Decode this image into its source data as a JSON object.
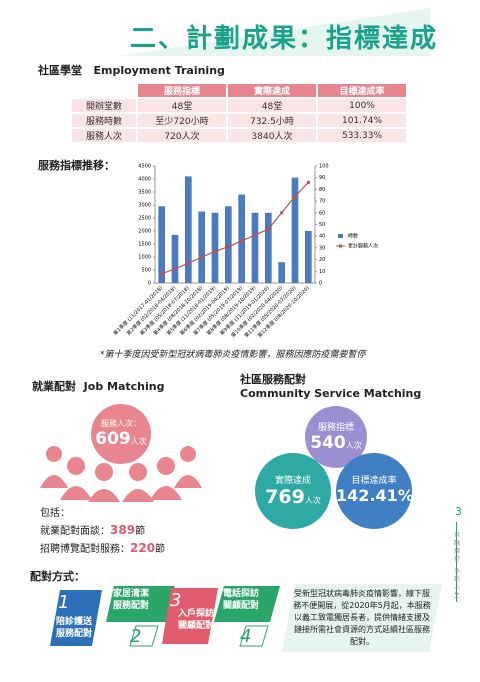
{
  "header": {
    "title": "二、計劃成果：指標達成"
  },
  "training": {
    "title": "社區學堂",
    "title_en": "Employment Training",
    "columns": [
      "服務指標",
      "實際達成",
      "目標達成率"
    ],
    "rows": [
      [
        "開辦堂數",
        "48堂",
        "48堂",
        "100%"
      ],
      [
        "服務時數",
        "至少720小時",
        "732.5小時",
        "101.74%"
      ],
      [
        "服務人次",
        "720人次",
        "3840人次",
        "533.33%"
      ]
    ]
  },
  "chart_data": {
    "type": "bar",
    "title": "服務指標推移：",
    "categories": [
      "第1季度 (11/2017-01/2018)",
      "第2季度 (02/2018-04/2018)",
      "第3季度 (05/2018-07/2018)",
      "第4季度 (08/2018-10/2018)",
      "第5季度 (11/2018-01/2019)",
      "第6季度 (02/2019-04/2019)",
      "第7季度 (05/2019-07/2019)",
      "第8季度 (08/2019-10/2019)",
      "第9季度 (11/2019-01/2020)",
      "第10季度 (02/2020-04/2020)",
      "第11季度 (05/2020-07/2020)",
      "第12季度 (08/2020-10/2020)"
    ],
    "series": [
      {
        "name": "時數",
        "color": "#4a7bc0",
        "values": [
          2950,
          1850,
          4100,
          2750,
          2700,
          2950,
          3400,
          2700,
          2700,
          800,
          4050,
          2000
        ]
      },
      {
        "name": "累計服務人次",
        "color": "#c0504d",
        "type": "line",
        "axis": "y2",
        "values": [
          8,
          12,
          17,
          22,
          27,
          31,
          36,
          41,
          46,
          60,
          74,
          86
        ]
      }
    ],
    "ylim": [
      0,
      4500
    ],
    "yticks": [
      0,
      500,
      1000,
      1500,
      2000,
      2500,
      3000,
      3500,
      4000,
      4500
    ],
    "y2lim": [
      0,
      100
    ],
    "y2ticks": [
      0,
      10,
      20,
      30,
      40,
      50,
      60,
      70,
      80,
      90,
      100
    ],
    "note": "*第十季度因受新型冠狀病毒肺炎疫情影響，服務因應防疫需要暫停"
  },
  "job": {
    "title": "就業配對",
    "title_en": "Job Matching",
    "served_label": "服務人次：",
    "served_value": "609",
    "served_unit": "人次",
    "includes": "包括：",
    "items": [
      {
        "label": "就業配對面談：",
        "value": "389",
        "unit": "節"
      },
      {
        "label": "招聘博覽配對服務：",
        "value": "220",
        "unit": "節"
      }
    ]
  },
  "community": {
    "title": "社區服務配對",
    "title_en": "Community Service Matching",
    "target": {
      "label": "服務指標",
      "value": "540",
      "unit": "人次"
    },
    "actual": {
      "label": "實際達成",
      "value": "769",
      "unit": "人次"
    },
    "rate": {
      "label": "目標達成率",
      "value": "142.41%"
    }
  },
  "methods": {
    "title": "配對方式：",
    "steps": [
      {
        "num": "1",
        "lines": [
          "陪診護送",
          "服務配對"
        ]
      },
      {
        "num": "2",
        "lines": [
          "家居清潔",
          "服務配對"
        ]
      },
      {
        "num": "3",
        "lines": [
          "入戶探訪",
          "關顧配對"
        ]
      },
      {
        "num": "4",
        "lines": [
          "電話探訪",
          "關顧配對"
        ]
      }
    ],
    "note": "受新型冠狀病毒肺炎疫情影響，線下服務不便開展，從2020年5月起，本服務以義工致電獨居長者，提供情緒支援及鏈接所需社會資源的方式延續社區服務配對。"
  },
  "side": {
    "page": "3",
    "text1": "共融燦行",
    "text2": "多彩人生"
  }
}
